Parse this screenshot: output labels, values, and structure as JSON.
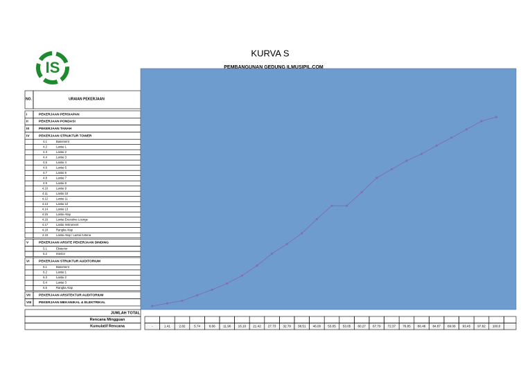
{
  "header": {
    "logo_text": "IS",
    "title": "KURVA S",
    "subtitle": "PEMBANGUNAN GEDUNG ILMUSIPIL.COM"
  },
  "table": {
    "columns": [
      "NO.",
      "URAIAN PEKERJAAN"
    ],
    "rows": [
      [
        "I",
        "PEKERJAAN PERSIAPAN"
      ],
      [
        "II",
        "PEKERJAAN PONDASI"
      ],
      [
        "III",
        "PEKERJAAN TANAH"
      ],
      [
        "IV",
        "PEKERJAAN STRUKTUR TOWER"
      ],
      [
        "4.1",
        "Basement"
      ],
      [
        "4.2",
        "Lantai 1"
      ],
      [
        "4.3",
        "Lantai 2"
      ],
      [
        "4.4",
        "Lantai 3"
      ],
      [
        "4.5",
        "Lantai 4"
      ],
      [
        "4.6",
        "Lantai 5"
      ],
      [
        "4.7",
        "Lantai 6"
      ],
      [
        "4.8",
        "Lantai 7"
      ],
      [
        "4.9",
        "Lantai 8"
      ],
      [
        "4.10",
        "Lantai 9"
      ],
      [
        "4.11",
        "Lantai 10"
      ],
      [
        "4.12",
        "Lantai 11"
      ],
      [
        "4.13",
        "Lantai 12"
      ],
      [
        "4.14",
        "Lantai 13"
      ],
      [
        "4.15",
        "Lantai Atap"
      ],
      [
        "4.16",
        "Lantai Executive Lounge"
      ],
      [
        "4.17",
        "Lantai Instrument"
      ],
      [
        "4.18",
        "Rangka Atap"
      ],
      [
        "4.19",
        "Lantai Atap / Lantai Antena"
      ],
      [
        "V",
        "PEKERJAAN ARSITE PEKERJAAN DINDING"
      ],
      [
        "5.1",
        "Eksterior"
      ],
      [
        "5.2",
        "Interior"
      ],
      [
        "VI",
        "PEKERJAAN STRUKTUR AUDITORIUM"
      ],
      [
        "6.1",
        "Basement"
      ],
      [
        "6.2",
        "Lantai 1"
      ],
      [
        "6.3",
        "Lantai 2"
      ],
      [
        "6.4",
        "Lantai 3"
      ],
      [
        "6.5",
        "Rangka Atap"
      ],
      [
        "VII",
        "PEKERJAAN ARSITEKTUR AUDITORIUM"
      ],
      [
        "VIII",
        "PEKERJAAN MEKANIKAL & ELEKTRIKAL"
      ]
    ],
    "footer": [
      "JUMLAH TOTAL",
      "Rencana Mingguan",
      "Kumulatif Rencana"
    ]
  },
  "chart_data": {
    "type": "line",
    "color": "#7f6fb8",
    "background": "#6f9ccf",
    "ylim": [
      0,
      100
    ],
    "values": [
      0,
      1.41,
      2.82,
      5.74,
      8.66,
      11.96,
      16.1,
      21.42,
      27.73,
      32.79,
      38.51,
      46,
      53.05,
      53.05,
      60.27,
      67.79,
      72.37,
      76.85,
      80.48,
      84.87,
      89.08,
      93.45,
      97.82,
      100
    ],
    "value_labels": [
      "-",
      "1.41",
      "2.82",
      "5.74",
      "8.66",
      "11.96",
      "16.10",
      "21.42",
      "27.73",
      "32.79",
      "38.51",
      "46.00",
      "53.05",
      "53.05",
      "60.27",
      "67.79",
      "72.37",
      "76.85",
      "80.48",
      "84.87",
      "89.08",
      "93.45",
      "97.82",
      "100.0"
    ]
  }
}
